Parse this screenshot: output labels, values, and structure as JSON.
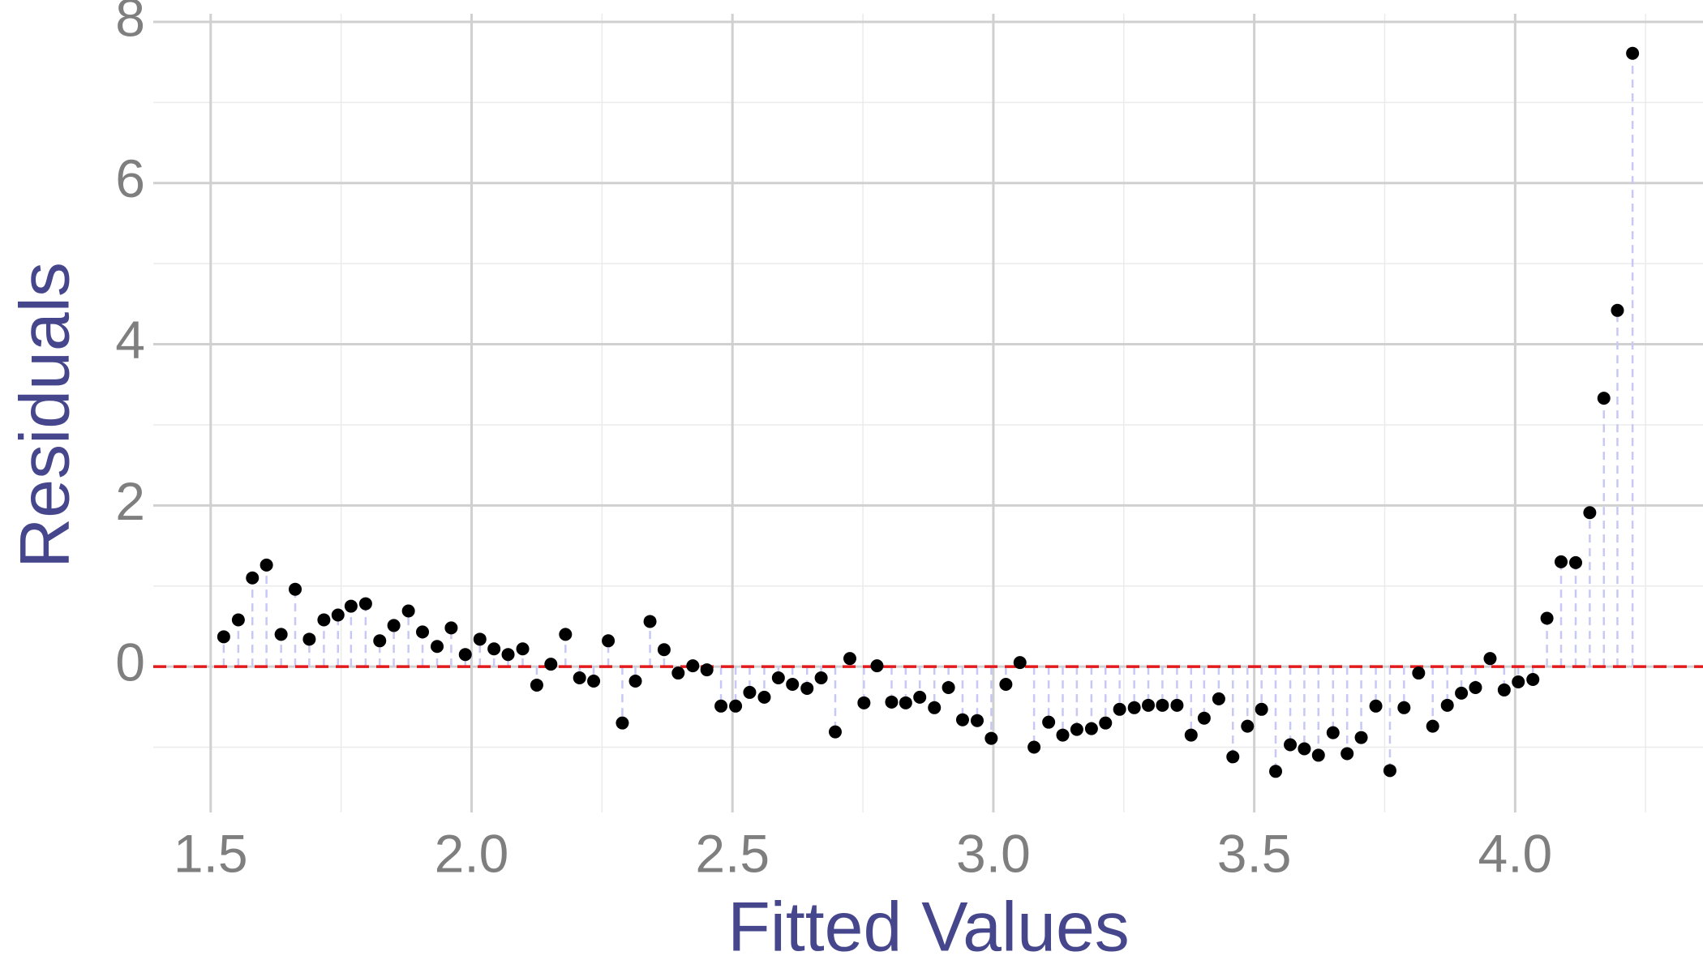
{
  "chart_data": {
    "type": "scatter",
    "x_label": "Fitted Values",
    "y_label": "Residuals",
    "xlim": [
      1.39,
      4.36
    ],
    "ylim": [
      -1.81,
      8
    ],
    "xticks": [
      1.5,
      {
        "value": 2,
        "label": "2.0"
      },
      2.5,
      {
        "value": 3,
        "label": "3.0"
      },
      3.5,
      {
        "value": 4,
        "label": "4.0"
      }
    ],
    "yticks": [
      0,
      2,
      4,
      6,
      8
    ],
    "xminor": [
      1.75,
      2.25,
      2.75,
      3.25,
      3.75,
      4.25
    ],
    "yminor": [
      -1,
      1,
      3,
      5,
      7
    ],
    "grid": true,
    "hline": {
      "value": 0,
      "color": "#e31a1c"
    },
    "stem_color": "#c8c8f5",
    "series": [
      {
        "color": "#000000",
        "x": [
          1.525,
          1.553,
          1.58,
          1.607,
          1.635,
          1.662,
          1.689,
          1.717,
          1.744,
          1.769,
          1.797,
          1.824,
          1.851,
          1.879,
          1.906,
          1.934,
          1.961,
          1.988,
          2.016,
          2.043,
          2.07,
          2.098,
          2.125,
          2.152,
          2.18,
          2.207,
          2.234,
          2.262,
          2.289,
          2.314,
          2.342,
          2.369,
          2.396,
          2.424,
          2.451,
          2.478,
          2.506,
          2.533,
          2.561,
          2.588,
          2.615,
          2.643,
          2.67,
          2.697,
          2.725,
          2.752,
          2.777,
          2.805,
          2.832,
          2.859,
          2.887,
          2.914,
          2.941,
          2.969,
          2.996,
          3.024,
          3.051,
          3.078,
          3.106,
          3.133,
          3.16,
          3.188,
          3.215,
          3.242,
          3.27,
          3.297,
          3.324,
          3.352,
          3.379,
          3.404,
          3.432,
          3.459,
          3.487,
          3.514,
          3.541,
          3.569,
          3.596,
          3.623,
          3.651,
          3.678,
          3.705,
          3.733,
          3.76,
          3.787,
          3.815,
          3.842,
          3.87,
          3.897,
          3.924,
          3.952,
          3.979,
          4.006,
          4.034,
          4.061,
          4.088,
          4.116,
          4.143,
          4.17,
          4.196,
          4.225
        ],
        "values": [
          0.37,
          0.58,
          1.1,
          1.26,
          0.4,
          0.96,
          0.34,
          0.58,
          0.64,
          0.75,
          0.78,
          0.32,
          0.51,
          0.69,
          0.43,
          0.25,
          0.48,
          0.15,
          0.34,
          0.22,
          0.15,
          0.22,
          -0.23,
          0.03,
          0.4,
          -0.14,
          -0.18,
          0.32,
          -0.7,
          -0.18,
          0.56,
          0.21,
          -0.08,
          0.01,
          -0.04,
          -0.49,
          -0.49,
          -0.32,
          -0.38,
          -0.14,
          -0.22,
          -0.27,
          -0.14,
          -0.81,
          0.1,
          -0.45,
          0.01,
          -0.44,
          -0.45,
          -0.38,
          -0.51,
          -0.26,
          -0.66,
          -0.67,
          -0.89,
          -0.22,
          0.05,
          -1.0,
          -0.69,
          -0.85,
          -0.78,
          -0.77,
          -0.7,
          -0.53,
          -0.51,
          -0.48,
          -0.48,
          -0.48,
          -0.85,
          -0.64,
          -0.4,
          -1.12,
          -0.74,
          -0.53,
          -1.3,
          -0.97,
          -1.02,
          -1.1,
          -0.82,
          -1.08,
          -0.88,
          -0.49,
          -1.29,
          -0.51,
          -0.08,
          -0.74,
          -0.48,
          -0.33,
          -0.26,
          0.1,
          -0.29,
          -0.19,
          -0.16,
          0.6,
          1.3,
          1.29,
          1.91,
          3.33,
          4.42,
          7.61
        ]
      }
    ]
  }
}
